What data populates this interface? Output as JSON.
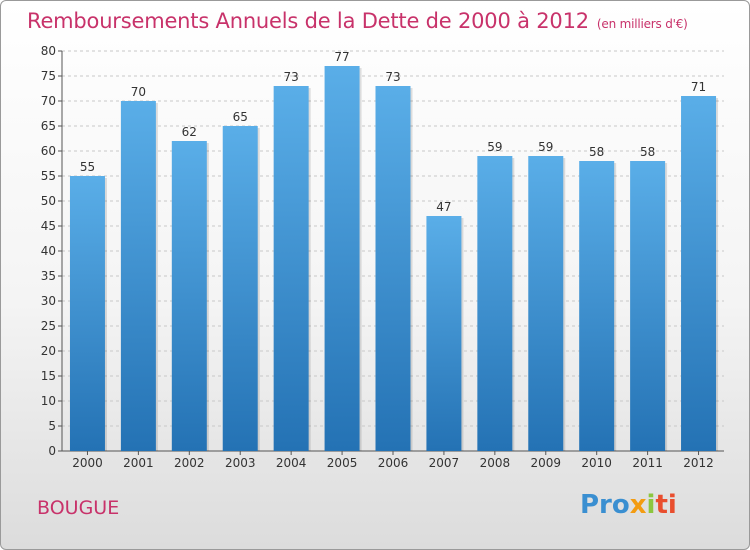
{
  "title": "Remboursements Annuels de la Dette de 2000 à 2012",
  "subtitle": "(en milliers d'€)",
  "city": "BOUGUE",
  "logo": {
    "parts": [
      "Pro",
      "x",
      "i",
      "ti"
    ]
  },
  "colors": {
    "title": "#c8326a",
    "bar_top": "#5aaee8",
    "bar_bottom": "#2472b4",
    "grid": "#c8c8c8"
  },
  "chart_data": {
    "type": "bar",
    "title": "Remboursements Annuels de la Dette de 2000 à 2012",
    "categories": [
      "2000",
      "2001",
      "2002",
      "2003",
      "2004",
      "2005",
      "2006",
      "2007",
      "2008",
      "2009",
      "2010",
      "2011",
      "2012"
    ],
    "values": [
      55,
      70,
      62,
      65,
      73,
      77,
      73,
      47,
      59,
      59,
      58,
      58,
      71
    ],
    "ylim": [
      0,
      80
    ],
    "yticks": [
      0,
      5,
      10,
      15,
      20,
      25,
      30,
      35,
      40,
      45,
      50,
      55,
      60,
      65,
      70,
      75,
      80
    ],
    "grid": true,
    "xlabel": "",
    "ylabel": ""
  }
}
